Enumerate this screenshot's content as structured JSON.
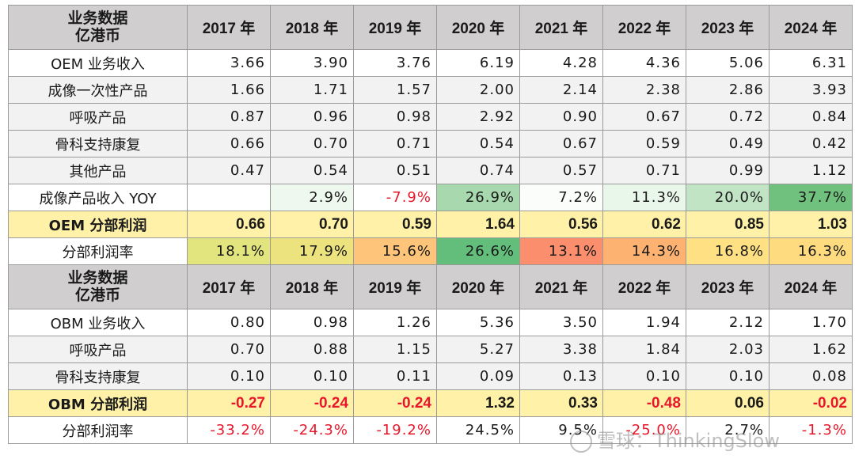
{
  "years": [
    "2017 年",
    "2018 年",
    "2019 年",
    "2020 年",
    "2021 年",
    "2022 年",
    "2023 年",
    "2024 年"
  ],
  "oem": {
    "header_line1": "业务数据",
    "header_line2": "亿港币",
    "rows": [
      {
        "label": "OEM 业务收入",
        "values": [
          "3.66",
          "3.90",
          "3.76",
          "6.19",
          "4.28",
          "4.36",
          "5.06",
          "6.31"
        ],
        "style": "plain"
      },
      {
        "label": "成像一次性产品",
        "values": [
          "1.66",
          "1.71",
          "1.57",
          "2.00",
          "2.14",
          "2.38",
          "2.86",
          "3.93"
        ],
        "style": "alt"
      },
      {
        "label": "呼吸产品",
        "values": [
          "0.87",
          "0.96",
          "0.98",
          "2.92",
          "0.90",
          "0.67",
          "0.72",
          "0.84"
        ],
        "style": "alt"
      },
      {
        "label": "骨科支持康复",
        "values": [
          "0.66",
          "0.70",
          "0.71",
          "0.54",
          "0.67",
          "0.59",
          "0.49",
          "0.42"
        ],
        "style": "alt"
      },
      {
        "label": "其他产品",
        "values": [
          "0.47",
          "0.54",
          "0.51",
          "0.74",
          "0.57",
          "0.71",
          "0.99",
          "1.12"
        ],
        "style": "alt"
      },
      {
        "label": "成像产品收入 YOY",
        "values": [
          "",
          "2.9%",
          "-7.9%",
          "26.9%",
          "7.2%",
          "11.3%",
          "20.0%",
          "37.7%"
        ],
        "style": "plain",
        "cell_colors": [
          "#ffffff",
          "#eef8ee",
          "#ffffff",
          "#a8d8ae",
          "#fbfdfb",
          "#e9f6ea",
          "#c0e4c4",
          "#70c17e"
        ]
      },
      {
        "label": "OEM 分部利润",
        "values": [
          "0.66",
          "0.70",
          "0.59",
          "1.64",
          "0.56",
          "0.62",
          "0.85",
          "1.03"
        ],
        "style": "profit"
      },
      {
        "label": "分部利润率",
        "values": [
          "18.1%",
          "17.9%",
          "15.6%",
          "26.6%",
          "13.1%",
          "14.3%",
          "16.8%",
          "16.3%"
        ],
        "style": "plain",
        "cell_colors": [
          "#e2e47e",
          "#ece37f",
          "#fdc47a",
          "#63be7b",
          "#fb8f6d",
          "#fdb272",
          "#ffe083",
          "#ffdb80"
        ]
      }
    ]
  },
  "obm": {
    "header_line1": "业务数据",
    "header_line2": "亿港币",
    "rows": [
      {
        "label": "OBM 业务收入",
        "values": [
          "0.80",
          "0.98",
          "1.26",
          "5.36",
          "3.50",
          "1.94",
          "2.12",
          "1.70"
        ],
        "style": "plain"
      },
      {
        "label": "呼吸产品",
        "values": [
          "0.70",
          "0.88",
          "1.15",
          "5.27",
          "3.38",
          "1.84",
          "2.03",
          "1.62"
        ],
        "style": "alt"
      },
      {
        "label": "骨科支持康复",
        "values": [
          "0.10",
          "0.10",
          "0.11",
          "0.09",
          "0.13",
          "0.10",
          "0.10",
          "0.08"
        ],
        "style": "alt"
      },
      {
        "label": "OBM 分部利润",
        "values": [
          "-0.27",
          "-0.24",
          "-0.24",
          "1.32",
          "0.33",
          "-0.48",
          "0.06",
          "-0.02"
        ],
        "style": "profit"
      },
      {
        "label": "分部利润率",
        "values": [
          "-33.2%",
          "-24.3%",
          "-19.2%",
          "24.5%",
          "9.5%",
          "-25.0%",
          "2.7%",
          "-1.3%"
        ],
        "style": "plain"
      }
    ]
  },
  "watermark": "雪球：ThinkingSlow",
  "colors": {
    "header_bg": "#d0cece",
    "profit_bg": "#fff2a8",
    "alt_bg": "#f2f2f2",
    "negative": "#e8162b"
  }
}
